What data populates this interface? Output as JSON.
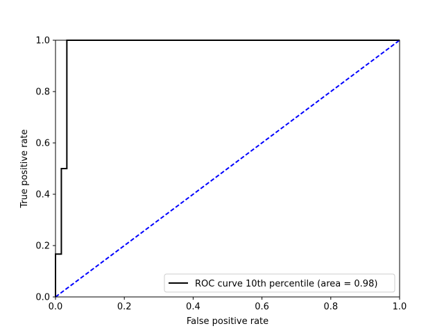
{
  "chart_data": {
    "type": "line",
    "title": "",
    "xlabel": "False positive rate",
    "ylabel": "True positive rate",
    "xlim": [
      0.0,
      1.0
    ],
    "ylim": [
      0.0,
      1.0
    ],
    "grid": false,
    "legend_position": "lower-right",
    "x_ticks": [
      "0.0",
      "0.2",
      "0.4",
      "0.6",
      "0.8",
      "1.0"
    ],
    "y_ticks": [
      "0.0",
      "0.2",
      "0.4",
      "0.6",
      "0.8",
      "1.0"
    ],
    "series": [
      {
        "name": "ROC curve 10th percentile (area = 0.98)",
        "color": "#000000",
        "style": "solid",
        "x": [
          0.0,
          0.0,
          0.017,
          0.017,
          0.033,
          0.033,
          1.0
        ],
        "y": [
          0.0,
          0.167,
          0.167,
          0.5,
          0.5,
          1.0,
          1.0
        ]
      },
      {
        "color": "#0000ff",
        "style": "dashed",
        "x": [
          0.0,
          1.0
        ],
        "y": [
          0.0,
          1.0
        ]
      }
    ]
  }
}
